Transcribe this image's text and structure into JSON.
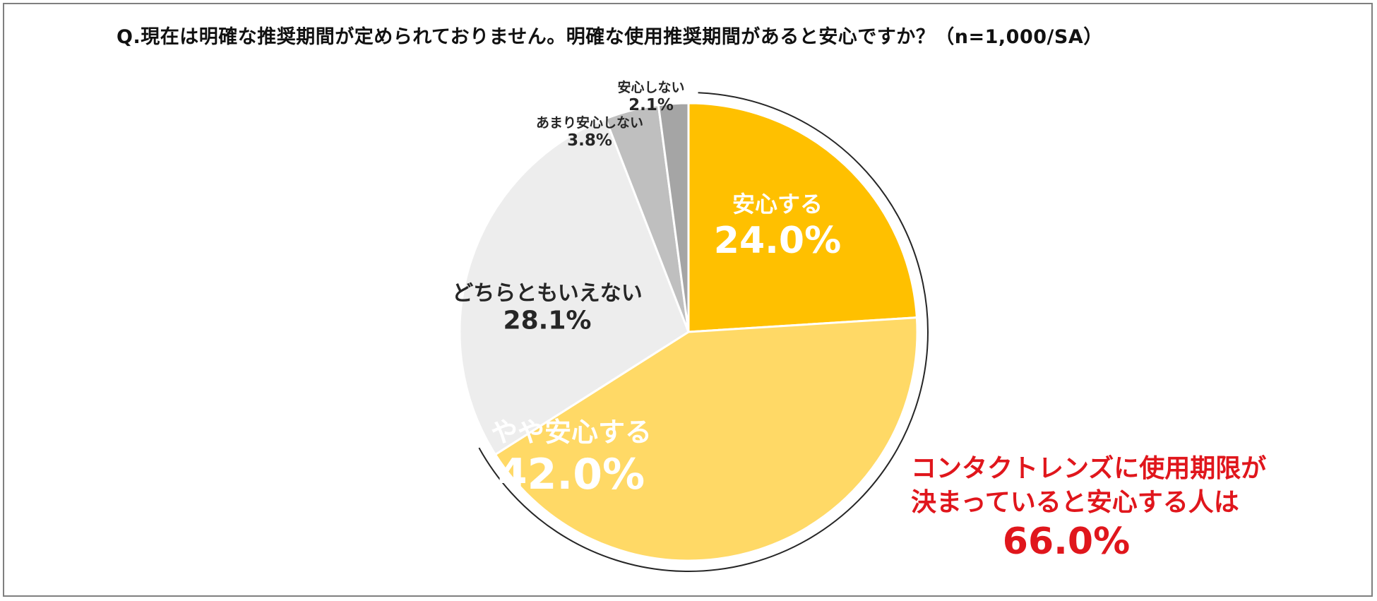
{
  "chart_data": {
    "type": "pie",
    "title": "Q.現在は明確な推奨期間が定められておりません。明確な使用推奨期間があると安心ですか？（n=1,000/SA）",
    "slices": [
      {
        "label": "安心する",
        "value": 24.0,
        "value_label": "24.0%",
        "color": "#FFC000"
      },
      {
        "label": "やや安心する",
        "value": 42.0,
        "value_label": "42.0%",
        "color": "#FFD966"
      },
      {
        "label": "どちらともいえない",
        "value": 28.1,
        "value_label": "28.1%",
        "color": "#EDEDED"
      },
      {
        "label": "あまり安心しない",
        "value": 3.8,
        "value_label": "3.8%",
        "color": "#BFBFBF"
      },
      {
        "label": "安心しない",
        "value": 2.1,
        "value_label": "2.1%",
        "color": "#A5A5A5"
      }
    ],
    "start_angle": "12 o'clock",
    "direction": "clockwise",
    "annotation": {
      "line1": "コンタクトレンズに使用期限が",
      "line2": "決まっていると安心する人は",
      "value": "66.0%",
      "color": "#E0161C",
      "bracket_covers": [
        "安心する",
        "やや安心する"
      ]
    }
  }
}
